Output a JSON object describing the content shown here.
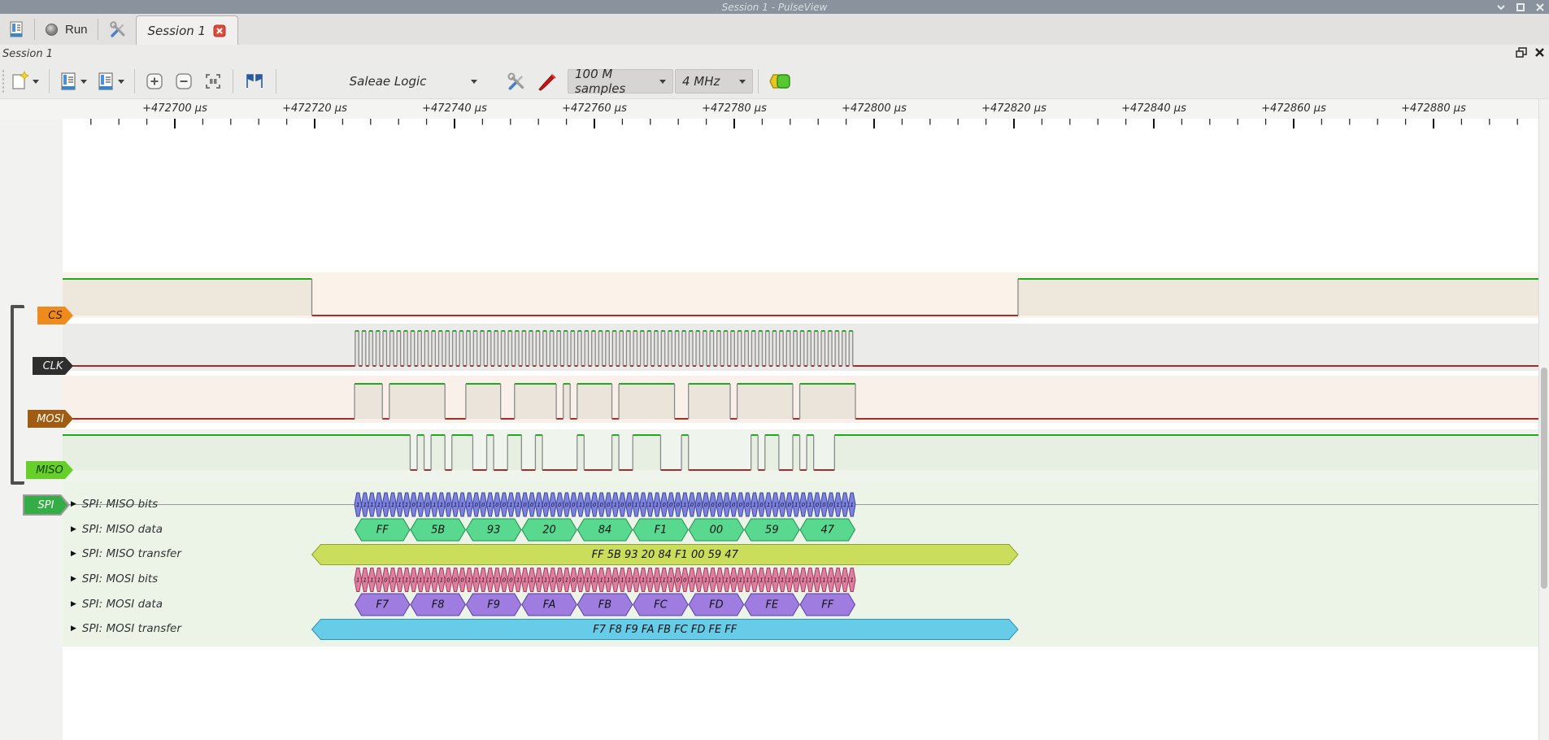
{
  "window": {
    "title": "Session 1 - PulseView",
    "controls": [
      "minimize",
      "maximize",
      "close"
    ]
  },
  "tabbar": {
    "run_label": "Run",
    "session_tab_label": "Session 1"
  },
  "dock_title": "Session 1",
  "toolbar": {
    "device_name": "Saleae Logic",
    "sample_count": "100 M samples",
    "sample_rate": "4 MHz"
  },
  "ruler": {
    "unit": "µs",
    "labels": [
      "+472700 µs",
      "+472720 µs",
      "+472740 µs",
      "+472760 µs",
      "+472780 µs",
      "+472800 µs",
      "+472820 µs",
      "+472840 µs",
      "+472860 µs",
      "+472880 µs"
    ]
  },
  "signals": [
    {
      "name": "CS",
      "flag_color": "#ef8b1c",
      "flag_border": "#a85f06",
      "text_color": "#3a2000",
      "band_color": "#fbf2e9",
      "fill_color": "#eee7dc"
    },
    {
      "name": "CLK",
      "flag_color": "#2e2e2e",
      "flag_border": "#000000",
      "text_color": "#f0f0f0",
      "band_color": "#ebebea",
      "fill_color": "#e3e2df"
    },
    {
      "name": "MOSI",
      "flag_color": "#a05c12",
      "flag_border": "#6e3c00",
      "text_color": "#ffffff",
      "band_color": "#f9f1e9",
      "fill_color": "#eae4da"
    },
    {
      "name": "MISO",
      "flag_color": "#66cf28",
      "flag_border": "#3f9a10",
      "text_color": "#123b00",
      "band_color": "#eff5ec",
      "fill_color": "#e7efe2"
    }
  ],
  "decoder": {
    "tag": "SPI",
    "tag_color": "#35ad46",
    "rows": [
      {
        "label": "SPI: MISO bits"
      },
      {
        "label": "SPI: MISO data"
      },
      {
        "label": "SPI: MISO transfer"
      },
      {
        "label": "SPI: MOSI bits"
      },
      {
        "label": "SPI: MOSI data"
      },
      {
        "label": "SPI: MOSI transfer"
      }
    ],
    "miso_bytes": [
      "FF",
      "5B",
      "93",
      "20",
      "84",
      "F1",
      "00",
      "59",
      "47"
    ],
    "mosi_bytes": [
      "F7",
      "F8",
      "F9",
      "FA",
      "FB",
      "FC",
      "FD",
      "FE",
      "FF"
    ],
    "miso_transfer_text": "FF 5B 93 20 84 F1 00 59 47",
    "mosi_transfer_text": "F7 F8 F9 FA FB FC FD FE FF",
    "colors": {
      "miso_bits": {
        "fill": "#7c82de",
        "stroke": "#3f45a0"
      },
      "miso_data": {
        "fill": "#58d98f",
        "stroke": "#1f8f4f"
      },
      "miso_transfer": {
        "fill": "#cade5b",
        "stroke": "#8fa32e"
      },
      "mosi_bits": {
        "fill": "#dd7f9e",
        "stroke": "#a83a62"
      },
      "mosi_data": {
        "fill": "#9e7ce0",
        "stroke": "#5b3fa5"
      },
      "mosi_transfer": {
        "fill": "#66cce8",
        "stroke": "#2f93b5"
      }
    }
  },
  "waveform": {
    "high_line_color": "#00a000",
    "low_line_color": "#9b0f0f",
    "edge_color": "#8a8a8a",
    "decode_bg": "#ecf4e8"
  }
}
